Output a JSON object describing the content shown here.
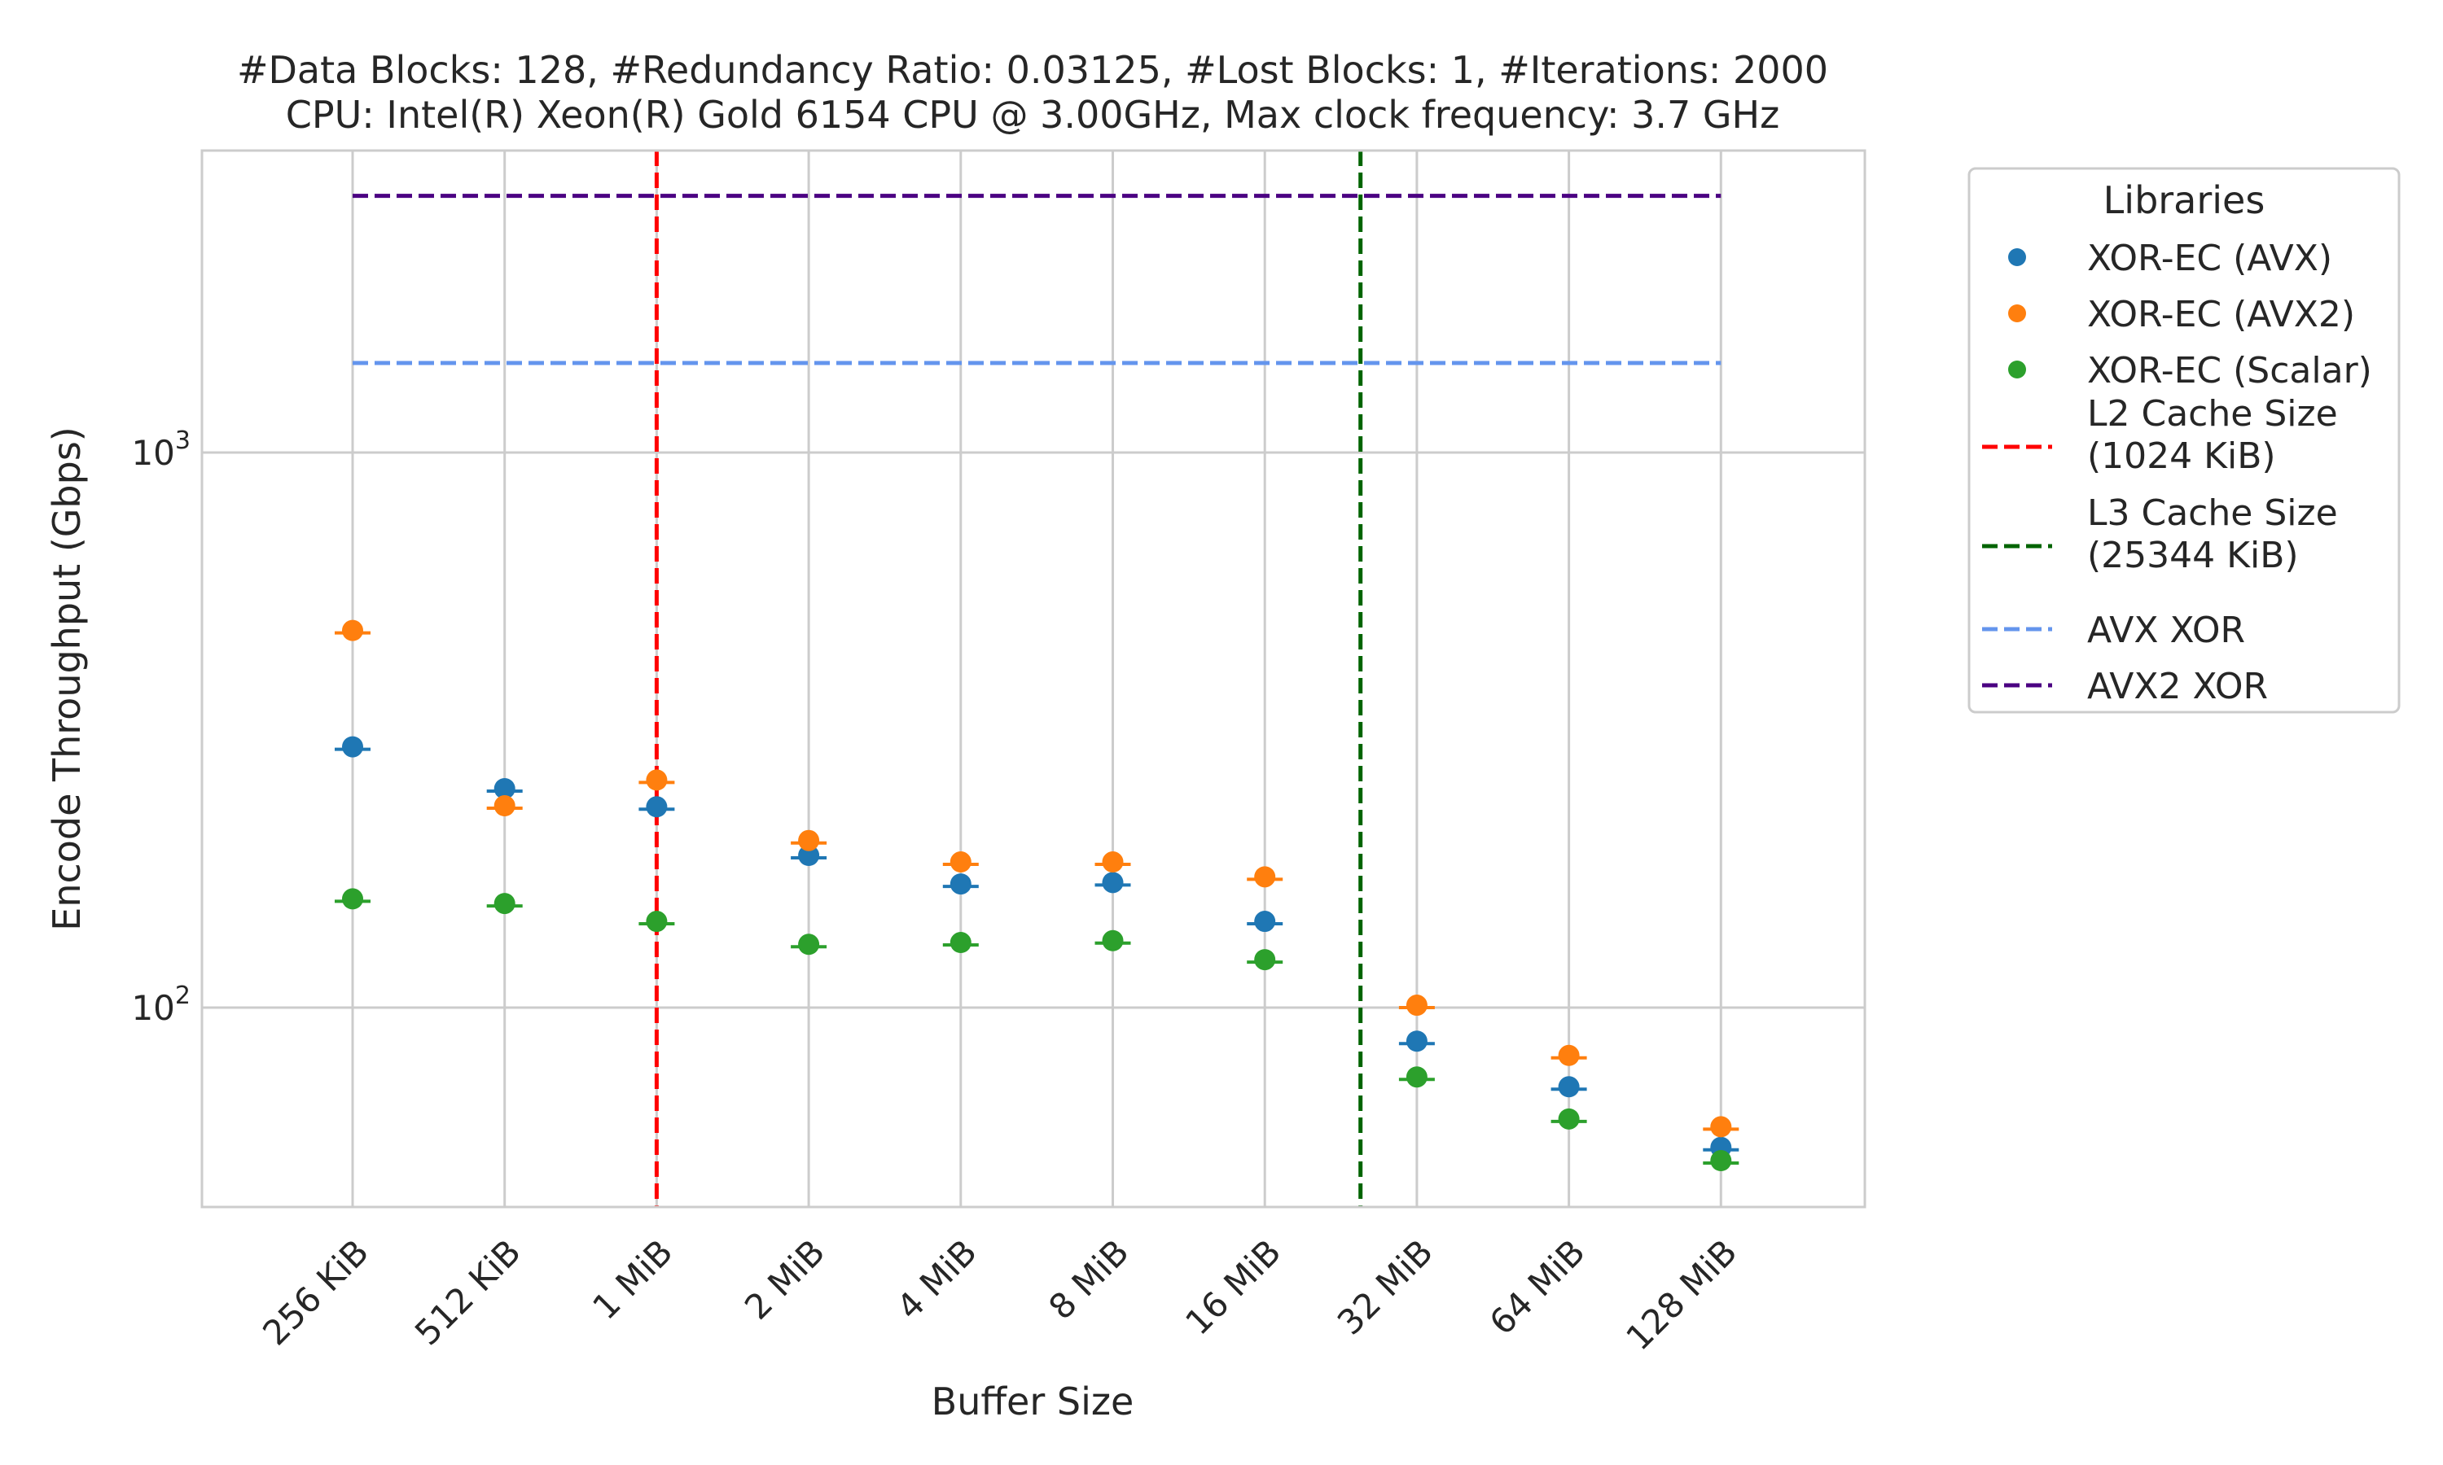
{
  "chart_data": {
    "type": "scatter",
    "title_line1": "#Data Blocks: 128, #Redundancy Ratio: 0.03125, #Lost Blocks: 1, #Iterations: 2000",
    "title_line2": "CPU: Intel(R) Xeon(R) Gold 6154 CPU @ 3.00GHz, Max clock frequency: 3.7 GHz",
    "xlabel": "Buffer Size",
    "ylabel": "Encode Throughput (Gbps)",
    "y_scale": "log",
    "ylim": [
      40,
      3800
    ],
    "y_ticks": [
      {
        "value": 100,
        "base": "10",
        "exp": "2"
      },
      {
        "value": 1000,
        "base": "10",
        "exp": "3"
      }
    ],
    "grid": true,
    "categories": [
      "256 KiB",
      "512 KiB",
      "1 MiB",
      "2 MiB",
      "4 MiB",
      "8 MiB",
      "16 MiB",
      "32 MiB",
      "64 MiB",
      "128 MiB"
    ],
    "series": [
      {
        "name": "XOR-EC (AVX)",
        "color": "#1f77b4",
        "values": [
          295,
          248,
          230,
          188,
          167,
          168,
          143,
          87,
          72,
          56
        ]
      },
      {
        "name": "XOR-EC (AVX2)",
        "color": "#ff7f0e",
        "values": [
          478,
          231,
          257,
          200,
          183,
          183,
          172,
          101,
          82,
          61
        ]
      },
      {
        "name": "XOR-EC (Scalar)",
        "color": "#2ca02c",
        "values": [
          157,
          154,
          143,
          130,
          131,
          132,
          122,
          75,
          63,
          53
        ]
      }
    ],
    "vlines": [
      {
        "name": "L2 Cache Size\n(1024 KiB)",
        "label_lines": [
          "L2 Cache Size",
          "(1024 KiB)"
        ],
        "color": "#ff0000",
        "x": "1 MiB"
      },
      {
        "name": "L3 Cache Size\n(25344 KiB)",
        "label_lines": [
          "L3 Cache Size",
          "(25344 KiB)"
        ],
        "color": "#006400",
        "x": "24.75 MiB"
      }
    ],
    "hlines": [
      {
        "name": "AVX XOR",
        "color": "#6495ed",
        "y": 1450
      },
      {
        "name": "AVX2 XOR",
        "color": "#4b0082",
        "y": 2900
      }
    ],
    "legend": {
      "title": "Libraries",
      "position": "outside-right"
    }
  }
}
